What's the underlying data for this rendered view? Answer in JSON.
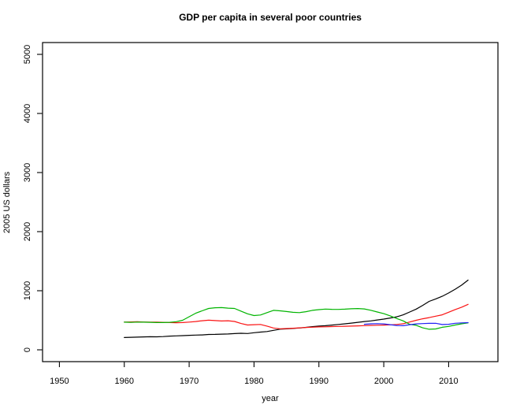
{
  "figure": {
    "title": "GDP per capita in several poor countries",
    "xlabel": "year",
    "ylabel": "2005 US dollars"
  },
  "chart_data": {
    "type": "line",
    "title": "GDP per capita in several poor countries",
    "xlabel": "year",
    "ylabel": "2005 US dollars",
    "xlim": [
      1947.4,
      2017.6
    ],
    "ylim": [
      -200,
      5200
    ],
    "x_ticks": [
      1950,
      1960,
      1970,
      1980,
      1990,
      2000,
      2010
    ],
    "y_ticks": [
      0,
      1000,
      2000,
      3000,
      4000,
      5000
    ],
    "grid": false,
    "legend": "none",
    "box_color": "#000000",
    "background": "#ffffff",
    "series": [
      {
        "name": "black-country",
        "color": "#000000",
        "start_year": 1960,
        "end_year": 2013,
        "values": [
          208,
          212,
          215,
          218,
          222,
          220,
          224,
          232,
          236,
          240,
          245,
          250,
          252,
          260,
          262,
          265,
          268,
          274,
          280,
          276,
          290,
          300,
          310,
          330,
          350,
          355,
          362,
          370,
          380,
          392,
          402,
          408,
          418,
          430,
          440,
          452,
          465,
          478,
          490,
          505,
          520,
          538,
          558,
          592,
          640,
          690,
          752,
          820,
          862,
          905,
          962,
          1025,
          1095,
          1180
        ]
      },
      {
        "name": "red-country",
        "color": "#fa1414",
        "start_year": 1960,
        "end_year": 2013,
        "values": [
          470,
          472,
          474,
          471,
          468,
          470,
          466,
          461,
          458,
          462,
          470,
          478,
          492,
          501,
          495,
          488,
          492,
          480,
          445,
          420,
          426,
          429,
          402,
          370,
          356,
          360,
          365,
          372,
          378,
          383,
          388,
          390,
          393,
          396,
          399,
          402,
          406,
          409,
          413,
          416,
          419,
          423,
          429,
          441,
          471,
          500,
          526,
          546,
          570,
          592,
          636,
          682,
          722,
          770
        ]
      },
      {
        "name": "green-country",
        "color": "#00b400",
        "start_year": 1960,
        "end_year": 2013,
        "values": [
          468,
          466,
          469,
          468,
          465,
          462,
          461,
          466,
          476,
          500,
          560,
          618,
          660,
          700,
          712,
          715,
          706,
          700,
          655,
          610,
          580,
          590,
          630,
          668,
          660,
          648,
          635,
          630,
          645,
          668,
          680,
          690,
          686,
          684,
          688,
          694,
          698,
          692,
          670,
          640,
          612,
          575,
          530,
          490,
          432,
          415,
          372,
          348,
          353,
          382,
          396,
          420,
          440,
          456
        ]
      },
      {
        "name": "blue-country",
        "color": "#2222f5",
        "start_year": 1997,
        "end_year": 2013,
        "values": [
          432,
          440,
          443,
          438,
          425,
          412,
          408,
          425,
          438,
          444,
          448,
          450,
          428,
          432,
          450,
          456,
          460
        ]
      }
    ]
  }
}
